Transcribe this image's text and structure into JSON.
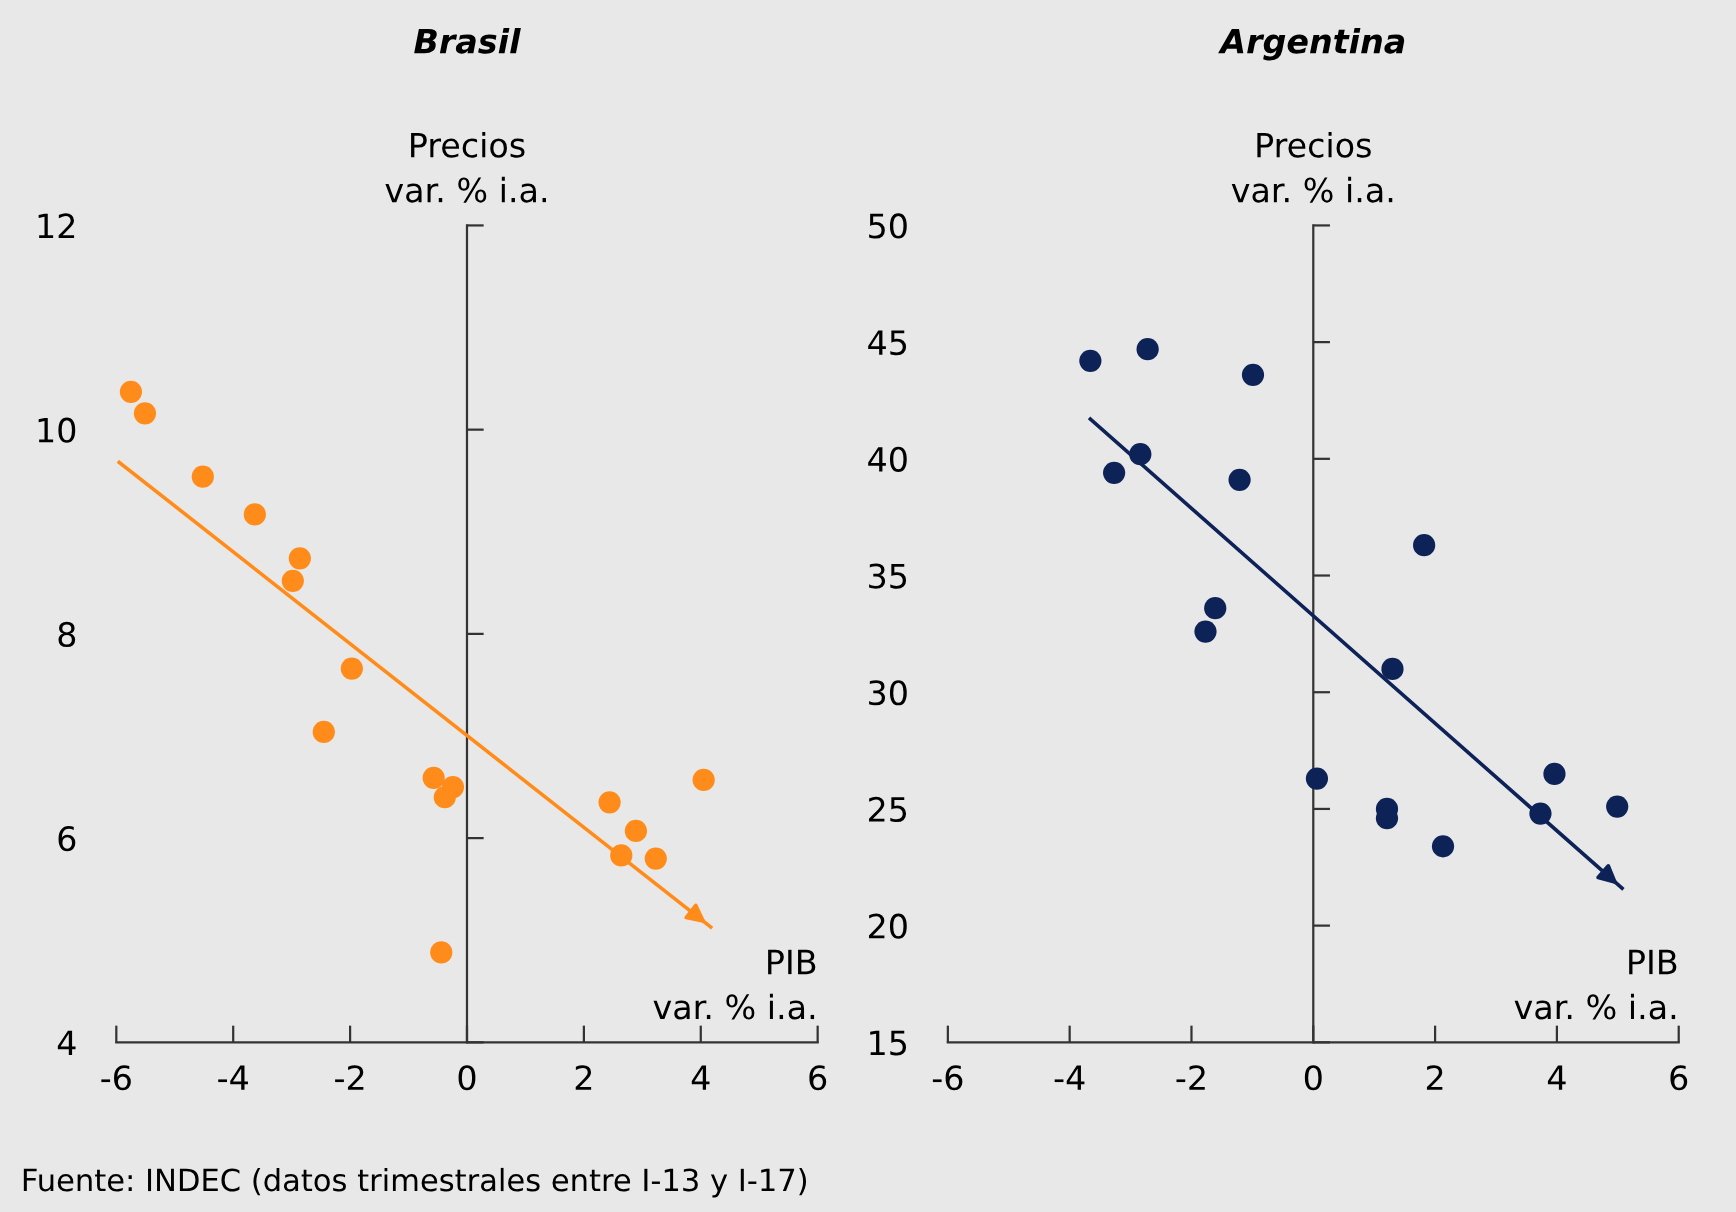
{
  "chart_data": [
    {
      "type": "scatter",
      "title": "Brasil",
      "ylabel": "Precios\nvar. % i.a.",
      "xlabel": "PIB\nvar. % i.a.",
      "xlim": [
        -6,
        6
      ],
      "xticks": [
        -6,
        -4,
        -2,
        0,
        2,
        4,
        6
      ],
      "ylim": [
        4,
        12
      ],
      "yticks": [
        4,
        6,
        8,
        10,
        12
      ],
      "series": [
        {
          "type": "scatter",
          "marker": "circle",
          "color": "#ff8c1a",
          "x": [
            -5.75,
            -5.51,
            -4.52,
            -3.63,
            -2.86,
            -2.98,
            -1.97,
            -2.45,
            -0.57,
            -0.24,
            -0.38,
            -0.44,
            2.44,
            2.89,
            2.64,
            3.23,
            4.05
          ],
          "values": [
            10.37,
            10.16,
            9.54,
            9.17,
            8.74,
            8.52,
            7.66,
            7.04,
            6.59,
            6.5,
            6.4,
            4.88,
            6.35,
            6.07,
            5.83,
            5.8,
            6.57
          ]
        },
        {
          "type": "line",
          "color": "#ff8c1a",
          "x": [
            -5.95,
            4.17
          ],
          "values": [
            9.68,
            5.13
          ]
        }
      ],
      "annotations": [
        "Fuente: INDEC (datos trimestrales entre I-13 y I-17)"
      ]
    },
    {
      "type": "scatter",
      "title": "Argentina",
      "ylabel": "Precios\nvar. % i.a.",
      "xlabel": "PIB\nvar. % i.a.",
      "xlim": [
        -6,
        6
      ],
      "xticks": [
        -6,
        -4,
        -2,
        0,
        2,
        4,
        6
      ],
      "ylim": [
        15,
        50
      ],
      "yticks": [
        15,
        20,
        25,
        30,
        35,
        40,
        45,
        50
      ],
      "series": [
        {
          "type": "scatter",
          "marker": "circle",
          "color": "#0d2257",
          "x": [
            -3.66,
            -2.72,
            -0.99,
            -3.27,
            -2.84,
            -1.21,
            -1.61,
            -1.77,
            1.82,
            1.3,
            0.06,
            1.21,
            1.21,
            2.13,
            3.73,
            3.96,
            4.99
          ],
          "values": [
            44.2,
            44.7,
            43.6,
            39.4,
            40.2,
            39.1,
            33.6,
            32.6,
            36.3,
            31.0,
            26.3,
            25.0,
            24.6,
            23.4,
            24.8,
            26.5,
            25.1
          ]
        },
        {
          "type": "line",
          "color": "#0d2257",
          "x": [
            -3.66,
            5.07
          ],
          "values": [
            41.7,
            21.6
          ]
        }
      ]
    }
  ]
}
